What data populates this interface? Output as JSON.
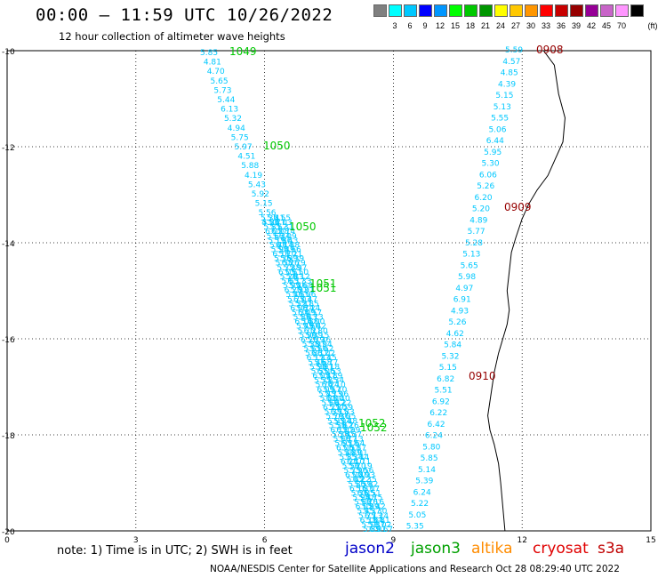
{
  "header": {
    "title": "00:00 – 11:59 UTC 10/26/2022",
    "subtitle": "12 hour collection of altimeter wave heights"
  },
  "color_scale": {
    "unit_label": "(ft)",
    "items": [
      {
        "label": "",
        "color": "#808080"
      },
      {
        "label": "3",
        "color": "#00ffff"
      },
      {
        "label": "6",
        "color": "#00c8ff"
      },
      {
        "label": "9",
        "color": "#0000ff"
      },
      {
        "label": "12",
        "color": "#0096ff"
      },
      {
        "label": "15",
        "color": "#00ff00"
      },
      {
        "label": "18",
        "color": "#00c800"
      },
      {
        "label": "21",
        "color": "#009600"
      },
      {
        "label": "24",
        "color": "#ffff00"
      },
      {
        "label": "27",
        "color": "#ffc800"
      },
      {
        "label": "30",
        "color": "#ff9600"
      },
      {
        "label": "33",
        "color": "#ff0000"
      },
      {
        "label": "36",
        "color": "#c80000"
      },
      {
        "label": "39",
        "color": "#960000"
      },
      {
        "label": "42",
        "color": "#960096"
      },
      {
        "label": "45",
        "color": "#c864c8"
      },
      {
        "label": "70",
        "color": "#ff96ff"
      },
      {
        "label": "",
        "color": "#000000"
      }
    ]
  },
  "map": {
    "lat_ticks": [
      "-10",
      "-12",
      "-14",
      "-16",
      "-18",
      "-20"
    ],
    "lon_ticks": [
      "0",
      "3",
      "6",
      "9",
      "12",
      "15"
    ],
    "track_colors": {
      "jason3": "#00c800",
      "cryosat": "#960000",
      "wave": "#00c8ff"
    },
    "pass_labels": [
      {
        "text": "1049",
        "sat": "jason3"
      },
      {
        "text": "1050",
        "sat": "jason3"
      },
      {
        "text": "1050",
        "sat": "jason3"
      },
      {
        "text": "1051",
        "sat": "jason3"
      },
      {
        "text": "1051",
        "sat": "jason3"
      },
      {
        "text": "1052",
        "sat": "jason3"
      },
      {
        "text": "1052",
        "sat": "jason3"
      },
      {
        "text": "0908",
        "sat": "cryosat"
      },
      {
        "text": "0909",
        "sat": "cryosat"
      },
      {
        "text": "0910",
        "sat": "cryosat"
      }
    ],
    "east_track": [
      "5.59",
      "4.57",
      "4.85",
      "4.39",
      "5.15",
      "5.13",
      "5.55",
      "5.06",
      "6.44",
      "5.95",
      "5.30",
      "6.06",
      "5.26",
      "6.20",
      "5.20",
      "4.89",
      "5.77",
      "5.28",
      "5.13",
      "5.65",
      "5.98",
      "4.97",
      "6.91",
      "4.93",
      "5.26",
      "4.62",
      "5.84",
      "5.32",
      "5.15",
      "6.82",
      "5.51",
      "6.92",
      "6.22",
      "6.42",
      "6.24",
      "5.80",
      "5.85",
      "5.14",
      "5.39",
      "6.24",
      "5.22",
      "5.05",
      "5.35"
    ],
    "west_track": [
      "5.85",
      "4.81",
      "4.70",
      "5.65",
      "5.73",
      "5.44",
      "6.13",
      "5.32",
      "4.94",
      "5.75",
      "5.97",
      "4.51",
      "5.88",
      "4.19",
      "5.43",
      "5.92",
      "5.15",
      "5.56",
      "4.81"
    ],
    "dense_samples": [
      "5.30",
      "5.24",
      "5.81",
      "6.02",
      "5.67",
      "5.19",
      "5.44",
      "5.90",
      "6.11",
      "5.36",
      "5.58",
      "5.72",
      "6.05",
      "5.28",
      "5.63",
      "5.95",
      "6.20",
      "5.41",
      "5.77",
      "5.52",
      "6.08",
      "5.34",
      "5.86",
      "6.14",
      "5.49",
      "5.70",
      "5.99",
      "6.26",
      "5.38",
      "5.61",
      "5.83",
      "6.17",
      "5.46",
      "5.92",
      "5.55",
      "6.03",
      "5.31",
      "5.74",
      "6.09",
      "5.43",
      "5.88",
      "5.66",
      "6.21",
      "5.39",
      "5.79",
      "5.97",
      "5.50",
      "6.12",
      "5.33",
      "5.68",
      "5.91",
      "6.06",
      "5.47",
      "5.85",
      "6.24",
      "5.57",
      "5.73",
      "6.00",
      "5.42",
      "5.80",
      "6.15",
      "5.36",
      "5.94",
      "5.62",
      "6.02",
      "5.45",
      "5.77",
      "6.18",
      "5.53",
      "5.89",
      "5.34",
      "6.10",
      "5.70",
      "5.96",
      "5.40",
      "6.22",
      "5.59",
      "5.83",
      "6.05",
      "5.48",
      "5.76",
      "5.99",
      "5.37",
      "6.13",
      "5.64",
      "5.87",
      "6.01",
      "5.44",
      "5.71",
      "6.19",
      "5.56",
      "5.93",
      "5.35",
      "5.82",
      "6.07",
      "5.51",
      "5.75",
      "6.16",
      "5.42"
    ]
  },
  "footer": {
    "note": "note:  1) Time is in UTC;  2) SWH is in feet",
    "satellites": [
      {
        "name": "jason2",
        "color": "#0000c8"
      },
      {
        "name": "jason3",
        "color": "#00a000"
      },
      {
        "name": "altika",
        "color": "#ff8c00"
      },
      {
        "name": "cryosat",
        "color": "#e00000"
      },
      {
        "name": "s3a",
        "color": "#c00000"
      }
    ],
    "credit": "NOAA/NESDIS Center for Satellite Applications and Research    Oct 28 08:29:40 UTC 2022"
  }
}
